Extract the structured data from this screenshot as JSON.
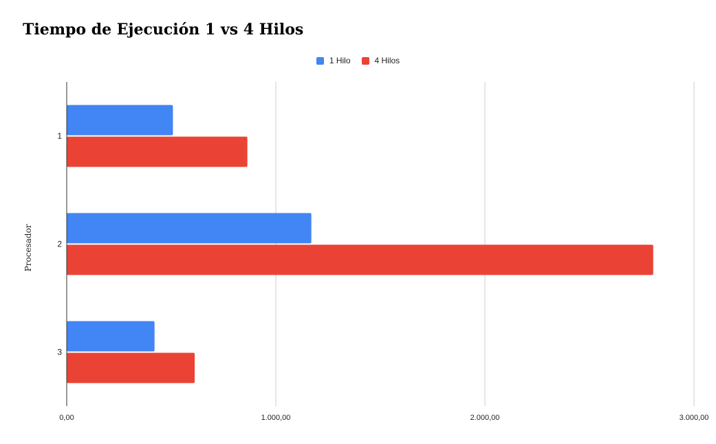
{
  "chart_data": {
    "type": "bar",
    "orientation": "horizontal",
    "title": "Tiempo de Ejecución 1 vs 4 Hilos",
    "xlabel": "",
    "ylabel": "Procesador",
    "categories": [
      "1",
      "2",
      "3"
    ],
    "series": [
      {
        "name": "1 Hilo",
        "color": "#4285f4",
        "values": [
          508,
          1170,
          420
        ]
      },
      {
        "name": "4 Hilos",
        "color": "#ea4335",
        "values": [
          864,
          2805,
          612
        ]
      }
    ],
    "xlim": [
      0,
      3000
    ],
    "xticks": [
      0,
      1000,
      2000,
      3000
    ],
    "xtick_labels": [
      "0,00",
      "1.000,00",
      "2.000,00",
      "3.000,00"
    ],
    "grid": true,
    "legend_position": "top"
  }
}
